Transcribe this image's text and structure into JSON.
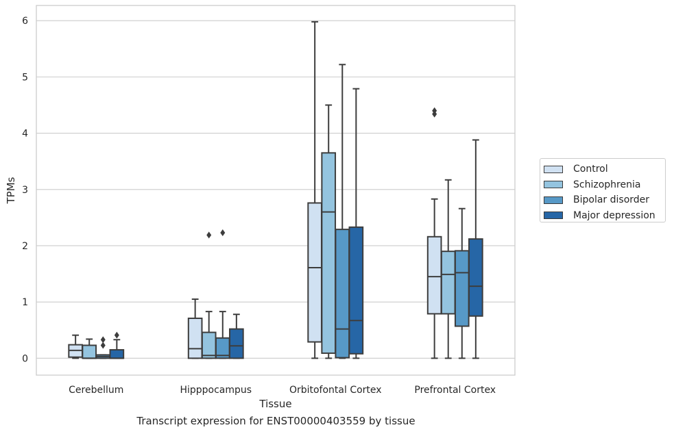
{
  "chart_data": {
    "type": "box",
    "caption": "Transcript expression for ENST00000403559 by tissue",
    "xlabel": "Tissue",
    "ylabel": "TPMs",
    "ylim": [
      -0.3,
      6.27
    ],
    "yticks": [
      "0",
      "1",
      "2",
      "3",
      "4",
      "5",
      "6"
    ],
    "grid": "horizontal",
    "legend_position": "right",
    "categories": [
      "Cerebellum",
      "Hipppocampus",
      "Orbitofontal Cortex",
      "Prefrontal Cortex"
    ],
    "series": [
      {
        "name": "Control",
        "color": "#d0e1f2",
        "boxes": [
          {
            "whislo": 0.0,
            "q1": 0.02,
            "med": 0.14,
            "q3": 0.24,
            "whishi": 0.41,
            "fliers": []
          },
          {
            "whislo": 0.0,
            "q1": 0.0,
            "med": 0.17,
            "q3": 0.71,
            "whishi": 1.05,
            "fliers": []
          },
          {
            "whislo": 0.0,
            "q1": 0.29,
            "med": 1.61,
            "q3": 2.76,
            "whishi": 5.98,
            "fliers": []
          },
          {
            "whislo": 0.0,
            "q1": 0.79,
            "med": 1.45,
            "q3": 2.16,
            "whishi": 2.83,
            "fliers": [
              4.34,
              4.4
            ]
          }
        ]
      },
      {
        "name": "Schizophrenia",
        "color": "#94c4df",
        "boxes": [
          {
            "whislo": 0.0,
            "q1": 0.0,
            "med": 0.0,
            "q3": 0.23,
            "whishi": 0.34,
            "fliers": []
          },
          {
            "whislo": 0.0,
            "q1": 0.0,
            "med": 0.05,
            "q3": 0.46,
            "whishi": 0.83,
            "fliers": [
              2.19
            ]
          },
          {
            "whislo": 0.0,
            "q1": 0.09,
            "med": 2.6,
            "q3": 3.65,
            "whishi": 4.5,
            "fliers": []
          },
          {
            "whislo": 0.0,
            "q1": 0.79,
            "med": 1.49,
            "q3": 1.9,
            "whishi": 3.17,
            "fliers": []
          }
        ]
      },
      {
        "name": "Bipolar disorder",
        "color": "#5799c7",
        "boxes": [
          {
            "whislo": 0.0,
            "q1": 0.0,
            "med": 0.03,
            "q3": 0.06,
            "whishi": 0.06,
            "fliers": [
              0.23,
              0.33
            ]
          },
          {
            "whislo": 0.0,
            "q1": 0.0,
            "med": 0.05,
            "q3": 0.36,
            "whishi": 0.83,
            "fliers": [
              2.23
            ]
          },
          {
            "whislo": 0.0,
            "q1": 0.01,
            "med": 0.52,
            "q3": 2.29,
            "whishi": 5.22,
            "fliers": []
          },
          {
            "whislo": 0.0,
            "q1": 0.57,
            "med": 1.52,
            "q3": 1.91,
            "whishi": 2.66,
            "fliers": []
          }
        ]
      },
      {
        "name": "Major depression",
        "color": "#2666a6",
        "boxes": [
          {
            "whislo": 0.0,
            "q1": 0.0,
            "med": 0.0,
            "q3": 0.15,
            "whishi": 0.33,
            "fliers": [
              0.41
            ]
          },
          {
            "whislo": 0.0,
            "q1": 0.0,
            "med": 0.22,
            "q3": 0.52,
            "whishi": 0.78,
            "fliers": []
          },
          {
            "whislo": 0.0,
            "q1": 0.08,
            "med": 0.67,
            "q3": 2.33,
            "whishi": 4.79,
            "fliers": []
          },
          {
            "whislo": 0.0,
            "q1": 0.75,
            "med": 1.28,
            "q3": 2.12,
            "whishi": 3.88,
            "fliers": []
          }
        ]
      }
    ]
  }
}
